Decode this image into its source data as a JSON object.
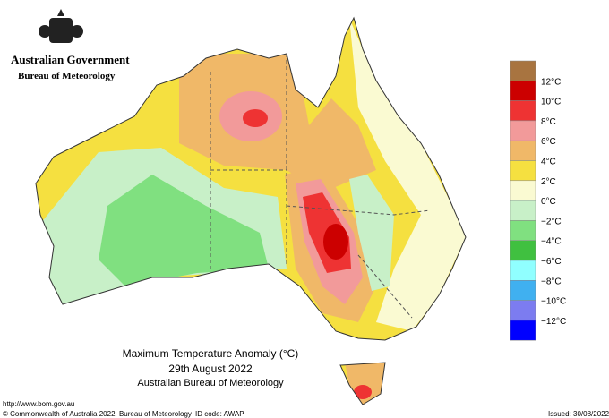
{
  "header": {
    "government": "Australian Government",
    "bureau": "Bureau of Meteorology"
  },
  "map": {
    "title": "Maximum Temperature Anomaly (°C)",
    "date": "29th August 2022",
    "source": "Australian Bureau of Meteorology"
  },
  "legend": {
    "colors": [
      "#a87440",
      "#cc0000",
      "#ee3333",
      "#f29a9a",
      "#f0b868",
      "#f5e040",
      "#fafad2",
      "#c8f0c8",
      "#80e080",
      "#40c040",
      "#90ffff",
      "#40b0f0",
      "#7c7cf0",
      "#0000ff"
    ],
    "labels": [
      "12°C",
      "10°C",
      "8°C",
      "6°C",
      "4°C",
      "2°C",
      "0°C",
      "−2°C",
      "−4°C",
      "−6°C",
      "−8°C",
      "−10°C",
      "−12°C"
    ]
  },
  "footer": {
    "url": "http://www.bom.gov.au",
    "copyright": "© Commonwealth of Australia 2022, Bureau of Meteorology",
    "id_code": "ID code: AWAP",
    "issued": "Issued: 30/08/2022"
  }
}
